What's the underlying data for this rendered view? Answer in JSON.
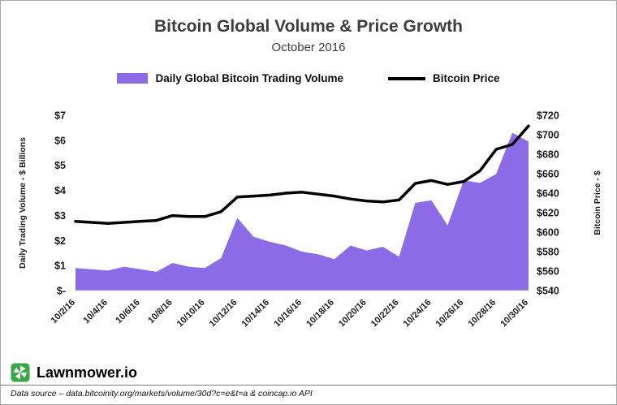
{
  "header": {
    "title": "Bitcoin Global Volume & Price Growth",
    "subtitle": "October 2016"
  },
  "legend": {
    "volume_label": "Daily Global Bitcoin Trading Volume",
    "price_label": "Bitcoin Price"
  },
  "footer": {
    "brand": "Lawnmower.io",
    "source_note": "Data source – data.bitcoinity.org/markets/volume/30d?c=e&t=a & coincap.io API"
  },
  "colors": {
    "volume_fill": "#8b6ce6",
    "price_line": "#000000",
    "title_text": "#3d3d3d",
    "brand_green": "#35a845",
    "axis_line": "#c9c9c9"
  },
  "chart_data": {
    "type": "area+line",
    "title": "Bitcoin Global Volume & Price Growth",
    "subtitle": "October 2016",
    "grid": "off",
    "legend_position": "top-center",
    "x": [
      "10/2/16",
      "10/3/16",
      "10/4/16",
      "10/5/16",
      "10/6/16",
      "10/7/16",
      "10/8/16",
      "10/9/16",
      "10/10/16",
      "10/11/16",
      "10/12/16",
      "10/13/16",
      "10/14/16",
      "10/15/16",
      "10/16/16",
      "10/17/16",
      "10/18/16",
      "10/19/16",
      "10/20/16",
      "10/21/16",
      "10/22/16",
      "10/23/16",
      "10/24/16",
      "10/25/16",
      "10/26/16",
      "10/27/16",
      "10/28/16",
      "10/29/16",
      "10/30/16"
    ],
    "x_tick_labels": [
      "10/2/16",
      "10/4/16",
      "10/6/16",
      "10/8/16",
      "10/10/16",
      "10/12/16",
      "10/14/16",
      "10/16/16",
      "10/18/16",
      "10/20/16",
      "10/22/16",
      "10/24/16",
      "10/26/16",
      "10/28/16",
      "10/30/16"
    ],
    "x_tick_every": 2,
    "left_axis": {
      "label": "Daily Trading Volume - $ Billions",
      "min": 0,
      "max": 7,
      "tick_labels": [
        "$-",
        "$1",
        "$2",
        "$3",
        "$4",
        "$5",
        "$6",
        "$7"
      ]
    },
    "right_axis": {
      "label": "Bitcoin Price - $",
      "min": 540,
      "max": 720,
      "tick_labels": [
        "$540",
        "$560",
        "$580",
        "$600",
        "$620",
        "$640",
        "$660",
        "$680",
        "$700",
        "$720"
      ]
    },
    "series": [
      {
        "name": "Daily Global Bitcoin Trading Volume",
        "type": "area",
        "axis": "left",
        "color": "#8b6ce6",
        "values": [
          0.9,
          0.85,
          0.8,
          0.95,
          0.85,
          0.75,
          1.1,
          0.95,
          0.9,
          1.3,
          2.9,
          2.15,
          1.95,
          1.8,
          1.55,
          1.45,
          1.25,
          1.8,
          1.6,
          1.75,
          1.35,
          3.5,
          3.6,
          2.6,
          4.4,
          4.3,
          4.65,
          6.3,
          5.95
        ]
      },
      {
        "name": "Bitcoin Price",
        "type": "line",
        "axis": "right",
        "color": "#000000",
        "values": [
          611,
          610,
          609,
          610,
          611,
          612,
          617,
          616,
          616,
          621,
          636,
          637,
          638,
          640,
          641,
          639,
          637,
          634,
          632,
          631,
          633,
          650,
          653,
          649,
          652,
          663,
          685,
          690,
          709
        ]
      }
    ]
  }
}
